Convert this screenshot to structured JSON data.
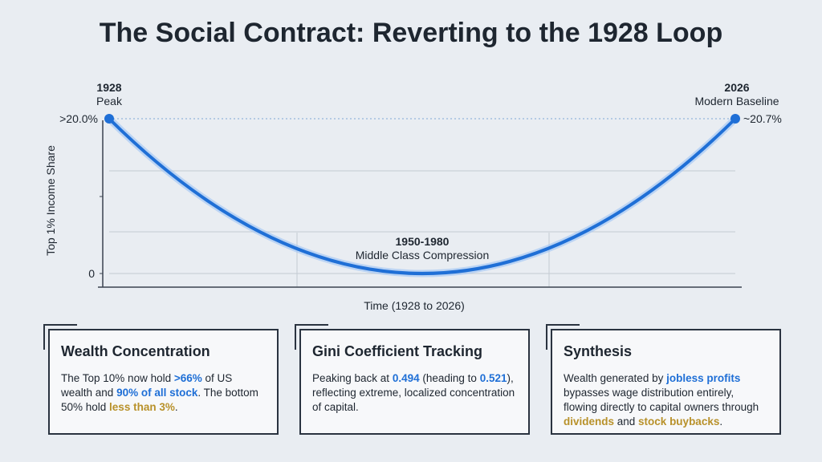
{
  "title": "The Social Contract: Reverting to the 1928 Loop",
  "chart": {
    "y_label": "Top 1% Income Share",
    "x_label": "Time (1928 to 2026)",
    "y_top_label": ">20.0%",
    "y_zero_label": "0",
    "start": {
      "year": "1928",
      "label": "Peak"
    },
    "end": {
      "year": "2026",
      "label": "Modern Baseline",
      "value_label": "~20.7%"
    },
    "trough": {
      "years": "1950-1980",
      "label": "Middle Class Compression"
    }
  },
  "cards": [
    {
      "title": "Wealth Concentration",
      "body": [
        {
          "text": "The Top 10% now hold "
        },
        {
          "text": ">66%",
          "highlight": "blue"
        },
        {
          "text": " of US wealth and "
        },
        {
          "text": "90% of all stock",
          "highlight": "blue"
        },
        {
          "text": ". The bottom 50% hold "
        },
        {
          "text": "less than 3%",
          "highlight": "gold"
        },
        {
          "text": "."
        }
      ]
    },
    {
      "title": "Gini Coefficient Tracking",
      "body": [
        {
          "text": "Peaking back at "
        },
        {
          "text": "0.494",
          "highlight": "blue"
        },
        {
          "text": " (heading to "
        },
        {
          "text": "0.521",
          "highlight": "blue"
        },
        {
          "text": "), reflecting extreme, localized concentration of capital."
        }
      ]
    },
    {
      "title": "Synthesis",
      "body": [
        {
          "text": "Wealth generated by "
        },
        {
          "text": "jobless profits",
          "highlight": "blue"
        },
        {
          "text": " bypasses wage distribution entirely, flowing directly to capital owners through "
        },
        {
          "text": "dividends",
          "highlight": "gold"
        },
        {
          "text": " and "
        },
        {
          "text": "stock buybacks",
          "highlight": "gold"
        },
        {
          "text": "."
        }
      ]
    }
  ]
}
